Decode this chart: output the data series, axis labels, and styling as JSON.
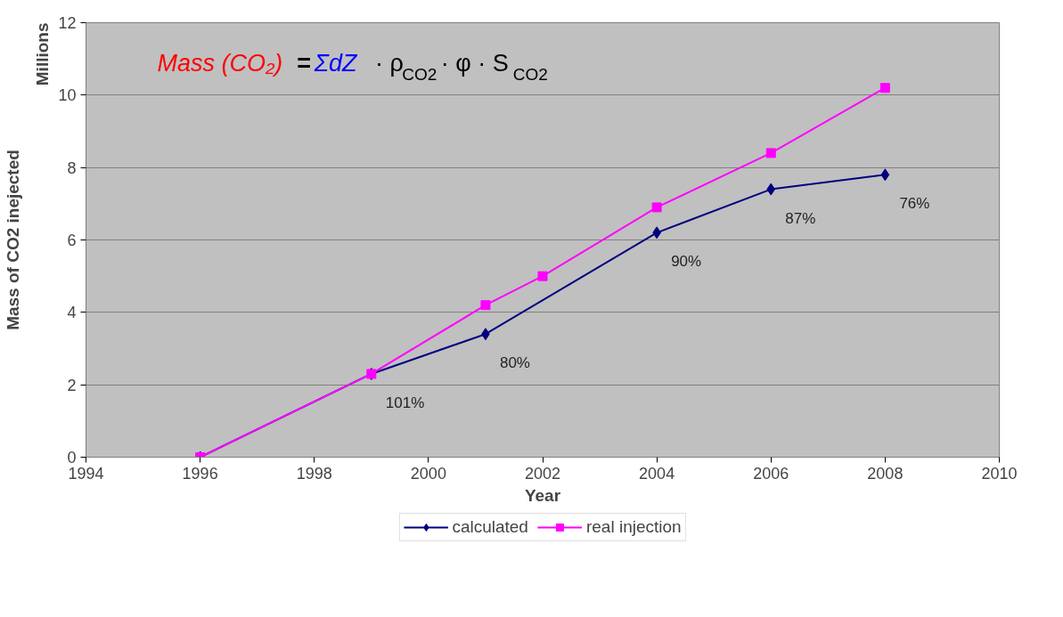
{
  "chart_data": {
    "type": "line",
    "xlabel": "Year",
    "ylabel": "Mass of CO2 inejected",
    "series": [
      {
        "name": "calculated",
        "color": "#000080",
        "marker": "diamond",
        "x": [
          1996,
          1999,
          2001,
          2004,
          2006,
          2008
        ],
        "values": [
          0,
          2.3,
          3.4,
          6.2,
          7.4,
          7.8
        ]
      },
      {
        "name": "real injection",
        "color": "#ff00ff",
        "marker": "square",
        "x": [
          1996,
          1999,
          2001,
          2002,
          2004,
          2006,
          2008
        ],
        "values": [
          0,
          2.3,
          4.2,
          5.0,
          6.9,
          8.4,
          10.2
        ]
      }
    ],
    "xlim": [
      1994,
      2010
    ],
    "xticks": [
      1994,
      1996,
      1998,
      2000,
      2002,
      2004,
      2006,
      2008,
      2010
    ],
    "ylim": [
      0,
      12
    ],
    "yticks": [
      0,
      2,
      4,
      6,
      8,
      10,
      12
    ],
    "grid": "y",
    "legend": "bottom",
    "annotations": [
      "Mass (CO₂)",
      "=",
      "ΣdZ",
      "· ρ$_{CO2}$ · φ · S$_{CO2}$",
      "Millions",
      {
        "text": "101%",
        "x": 1999,
        "y": 2.3
      },
      {
        "text": "80%",
        "x": 2001,
        "y": 3.4
      },
      {
        "text": "90%",
        "x": 2004,
        "y": 6.2
      },
      {
        "text": "87%",
        "x": 2006,
        "y": 7.4
      },
      {
        "text": "76%",
        "x": 2008,
        "y": 7.8
      }
    ]
  }
}
